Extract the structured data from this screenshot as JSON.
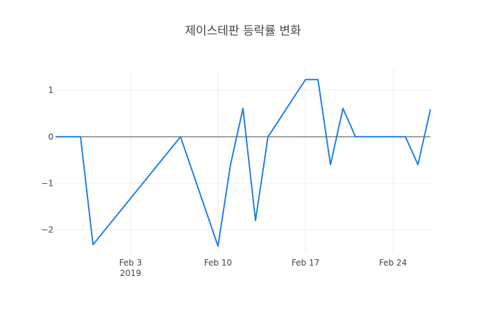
{
  "chart_data": {
    "type": "line",
    "title": "제이스테판 등락률 변화",
    "xlabel": "",
    "ylabel": "",
    "xlim": [
      "2019-01-28",
      "2019-02-27"
    ],
    "ylim": [
      -2.5,
      1.45
    ],
    "grid": true,
    "legend": "none",
    "x_ticks": [
      {
        "value": "2019-02-03",
        "label": "Feb 3",
        "sublabel": "2019"
      },
      {
        "value": "2019-02-10",
        "label": "Feb 10",
        "sublabel": ""
      },
      {
        "value": "2019-02-17",
        "label": "Feb 17",
        "sublabel": ""
      },
      {
        "value": "2019-02-24",
        "label": "Feb 24",
        "sublabel": ""
      }
    ],
    "y_ticks": [
      {
        "value": 1,
        "label": "1"
      },
      {
        "value": 0,
        "label": "0"
      },
      {
        "value": -1,
        "label": "−1"
      },
      {
        "value": -2,
        "label": "−2"
      }
    ],
    "series": [
      {
        "color": "#1f7fe0",
        "x": [
          "2019-01-28",
          "2019-01-29",
          "2019-01-30",
          "2019-01-31",
          "2019-02-07",
          "2019-02-10",
          "2019-02-11",
          "2019-02-12",
          "2019-02-13",
          "2019-02-14",
          "2019-02-17",
          "2019-02-18",
          "2019-02-19",
          "2019-02-20",
          "2019-02-21",
          "2019-02-22",
          "2019-02-25",
          "2019-02-26",
          "2019-02-27"
        ],
        "y": [
          0,
          0,
          0,
          -2.32,
          0,
          -2.35,
          -0.6,
          0.61,
          -1.8,
          0,
          1.23,
          1.23,
          -0.6,
          0.61,
          0,
          0,
          0,
          -0.6,
          0.59
        ]
      }
    ]
  }
}
